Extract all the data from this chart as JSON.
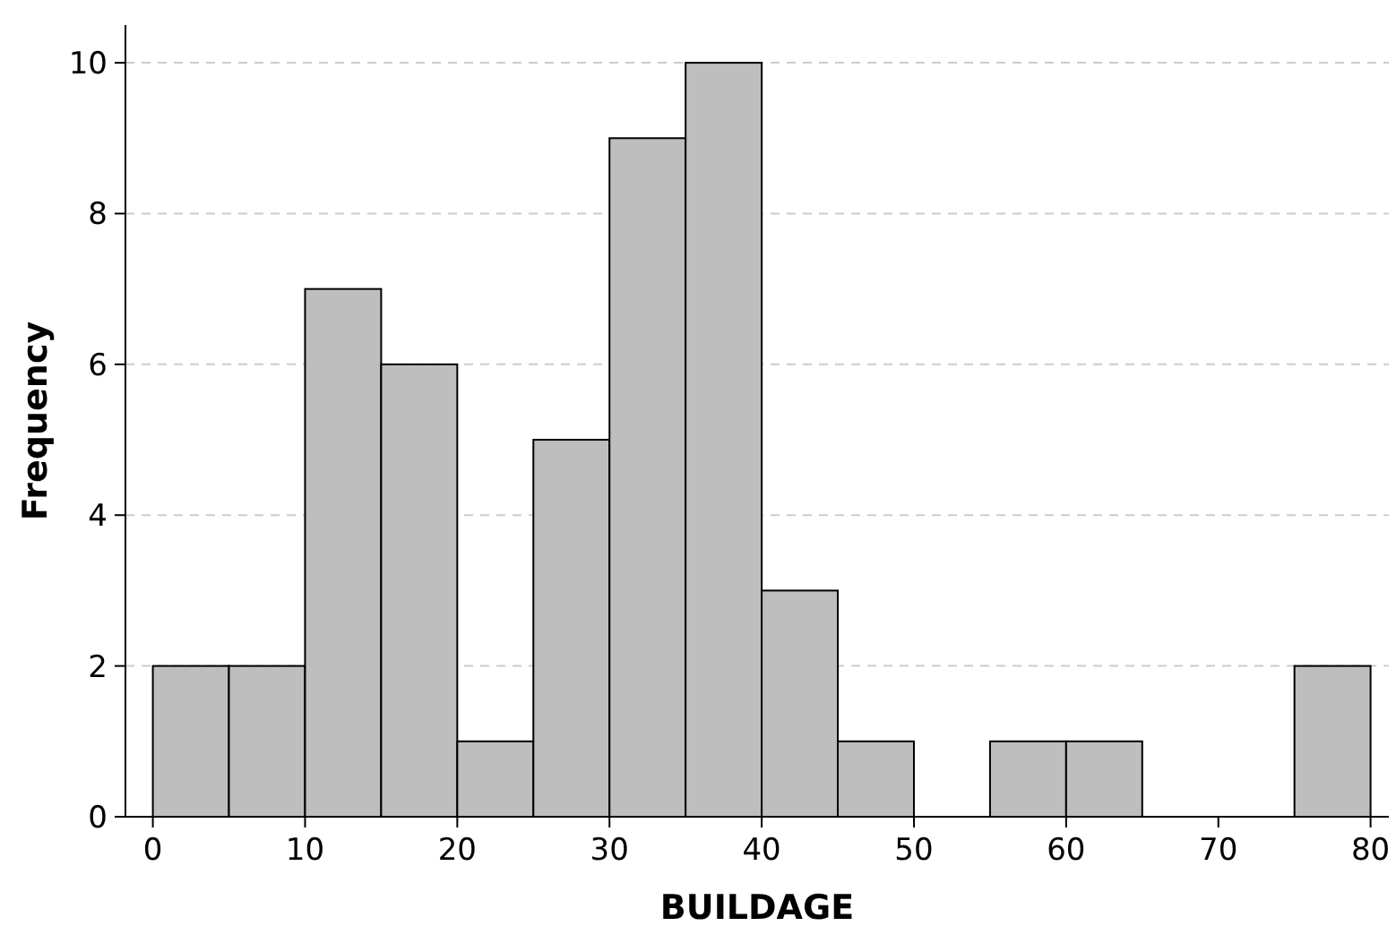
{
  "chart_data": {
    "type": "histogram",
    "xlabel": "BUILDAGE",
    "ylabel": "Frequency",
    "bins": [
      0,
      5,
      10,
      15,
      20,
      25,
      30,
      35,
      40,
      45,
      50,
      55,
      60,
      65,
      70,
      75,
      80
    ],
    "values": [
      2,
      2,
      7,
      6,
      1,
      5,
      9,
      10,
      3,
      1,
      0,
      1,
      1,
      0,
      0,
      2
    ],
    "color": "#bebebe",
    "xlim": [
      -1.8,
      81.2
    ],
    "xticks": [
      0,
      10,
      20,
      30,
      40,
      50,
      60,
      70,
      80
    ],
    "ylim": [
      0,
      10.5
    ],
    "yticks": [
      0,
      2,
      4,
      6,
      8,
      10
    ],
    "grid": "y"
  }
}
